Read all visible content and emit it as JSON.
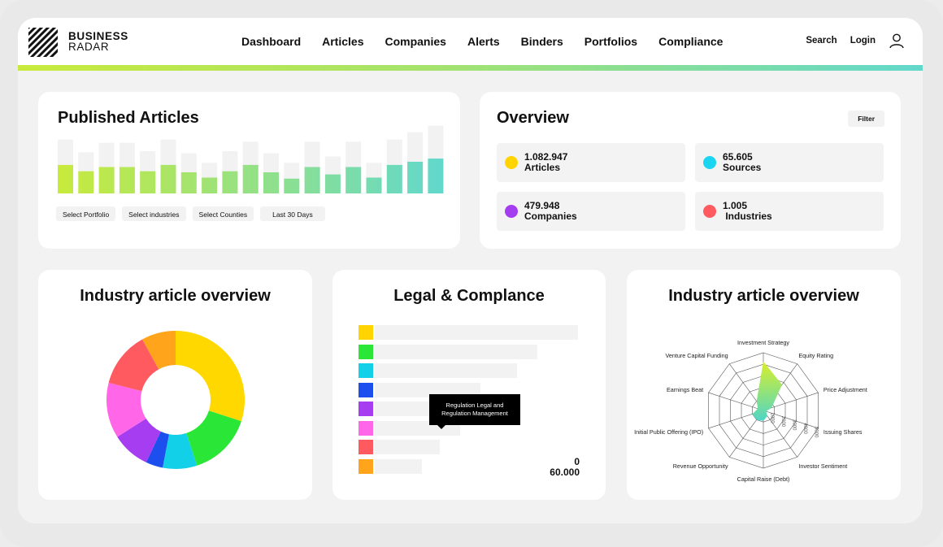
{
  "brand": {
    "line1": "BUSINESS",
    "line2": "RADAR"
  },
  "nav": [
    "Dashboard",
    "Articles",
    "Companies",
    "Alerts",
    "Binders",
    "Portfolios",
    "Compliance"
  ],
  "header_right": {
    "search": "Search",
    "login": "Login"
  },
  "colors": {
    "gradient_start": "#c8ea3c",
    "gradient_end": "#62d8cc"
  },
  "published": {
    "title": "Published Articles",
    "filters": [
      "Select Portfolio",
      "Select industries",
      "Select Counties",
      "Last 30 Days"
    ],
    "bars": [
      {
        "total": 0.51,
        "value": 0.27
      },
      {
        "total": 0.39,
        "value": 0.21
      },
      {
        "total": 0.48,
        "value": 0.25
      },
      {
        "total": 0.48,
        "value": 0.25
      },
      {
        "total": 0.4,
        "value": 0.21
      },
      {
        "total": 0.51,
        "value": 0.27
      },
      {
        "total": 0.38,
        "value": 0.2
      },
      {
        "total": 0.29,
        "value": 0.15
      },
      {
        "total": 0.4,
        "value": 0.21
      },
      {
        "total": 0.49,
        "value": 0.27
      },
      {
        "total": 0.38,
        "value": 0.2
      },
      {
        "total": 0.29,
        "value": 0.14
      },
      {
        "total": 0.49,
        "value": 0.25
      },
      {
        "total": 0.35,
        "value": 0.18
      },
      {
        "total": 0.49,
        "value": 0.25
      },
      {
        "total": 0.29,
        "value": 0.15
      },
      {
        "total": 0.51,
        "value": 0.27
      },
      {
        "total": 0.58,
        "value": 0.3
      },
      {
        "total": 0.64,
        "value": 0.33
      }
    ]
  },
  "overview": {
    "title": "Overview",
    "filter": "Filter",
    "stats": [
      {
        "num": "1.082.947",
        "label": "Articles",
        "color": "#ffd400"
      },
      {
        "num": "65.605",
        "label": "Sources",
        "color": "#1ad4f0"
      },
      {
        "num": "479.948",
        "label": "Companies",
        "color": "#a43cf0"
      },
      {
        "num": "1.005",
        "label": " Industries",
        "color": "#ff5a5f"
      }
    ]
  },
  "industry_donut": {
    "title": "Industry article overview",
    "segments": [
      {
        "value": 30,
        "color": "#ffd800"
      },
      {
        "value": 15,
        "color": "#2ae636"
      },
      {
        "value": 8,
        "color": "#12d0e8"
      },
      {
        "value": 4,
        "color": "#1d4fef"
      },
      {
        "value": 9,
        "color": "#a63df0"
      },
      {
        "value": 13,
        "color": "#ff66e8"
      },
      {
        "value": 13,
        "color": "#ff5a5f"
      },
      {
        "value": 8,
        "color": "#ffa41b"
      }
    ]
  },
  "legal": {
    "title": "Legal & Complance",
    "rows": [
      {
        "color": "#ffd400",
        "value": 1.0
      },
      {
        "color": "#2ae636",
        "value": 0.8
      },
      {
        "color": "#12d0e8",
        "value": 0.7
      },
      {
        "color": "#1d4fef",
        "value": 0.52
      },
      {
        "color": "#a63df0",
        "value": 0.45
      },
      {
        "color": "#ff66e8",
        "value": 0.42
      },
      {
        "color": "#ff5a5f",
        "value": 0.32
      },
      {
        "color": "#ffa41b",
        "value": 0.23
      }
    ],
    "tooltip_line1": "Regulation Legal and",
    "tooltip_line2": "Regulation Management",
    "axis_min": "0",
    "axis_max": "60.000"
  },
  "radar": {
    "title": "Industry article overview",
    "axes": [
      "Investment Strategy",
      "Equity Rating",
      "Price Adjustment",
      "Issuing Shares",
      "Investor Sentiment",
      "Capital Raise (Debt)",
      "Revenue Opportunity",
      "Initial Public Offering (IPO)",
      "Earnings Beat",
      "Venture Capital Funding"
    ],
    "values": [
      0.85,
      0.55,
      0.15,
      0.05,
      0.12,
      0.18,
      0.2,
      0.2,
      0.1,
      0.2
    ],
    "ticks": [
      "1000",
      "2000",
      "3000",
      "4000",
      "5000"
    ]
  }
}
